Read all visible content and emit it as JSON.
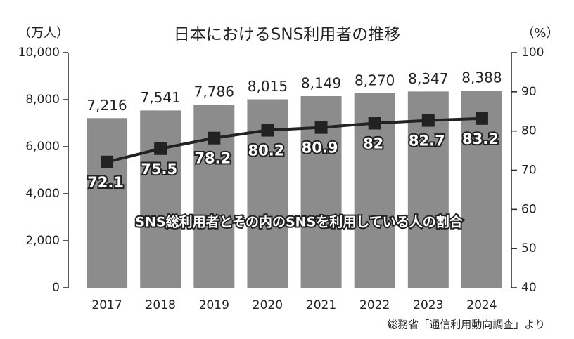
{
  "chart_data": {
    "type": "bar_line",
    "title": "日本におけるSNS利用者の推移",
    "y_label": "（万人）",
    "y2_label": "（%）",
    "annotation": "SNS総利用者とその内のSNSを利用している人の割合",
    "source": "総務省「通信利用動向調査」より",
    "categories": [
      "2017",
      "2018",
      "2019",
      "2020",
      "2021",
      "2022",
      "2023",
      "2024"
    ],
    "series": [
      {
        "type": "bar",
        "color": "#8c8c8c",
        "values": [
          7216,
          7541,
          7786,
          8015,
          8149,
          8270,
          8347,
          8388
        ],
        "value_labels": [
          "7,216",
          "7,541",
          "7,786",
          "8,015",
          "8,149",
          "8,270",
          "8,347",
          "8,388"
        ]
      },
      {
        "type": "line",
        "axis": "y2",
        "color": "#222222",
        "values": [
          72.1,
          75.5,
          78.2,
          80.2,
          80.9,
          82.0,
          82.7,
          83.2
        ]
      }
    ],
    "ylim": [
      0,
      10000
    ],
    "yticks": [
      0,
      {
        "value": 2000,
        "label": "2,000"
      },
      {
        "value": 4000,
        "label": "4,000"
      },
      {
        "value": 6000,
        "label": "6,000"
      },
      {
        "value": 8000,
        "label": "8,000"
      },
      {
        "value": 10000,
        "label": "10,000"
      }
    ],
    "y2lim": [
      40,
      100
    ],
    "y2ticks": [
      40,
      50,
      60,
      70,
      80,
      90,
      100
    ]
  }
}
